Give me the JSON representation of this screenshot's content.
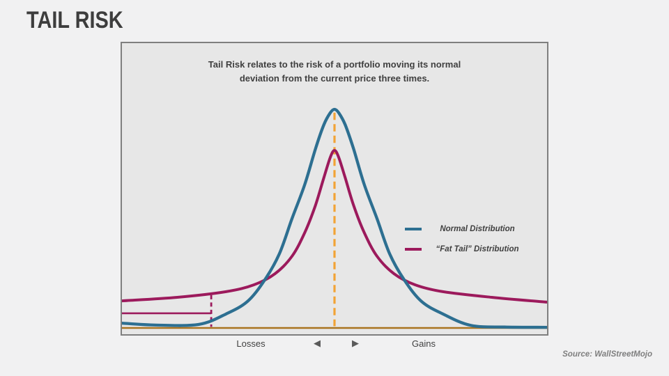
{
  "page": {
    "title": "TAIL RISK",
    "source": "Source: WallStreetMojo",
    "background": "#f1f1f2",
    "text_color": "#3d3d3d"
  },
  "panel": {
    "description_line1": "Tail Risk relates to the risk of a portfolio moving its normal",
    "description_line2": "deviation from the current price three times.",
    "background": "#e7e7e7",
    "border_color": "#7f7f7f"
  },
  "axis": {
    "losses_label": "Losses",
    "gains_label": "Gains",
    "left_arrow_icon": "◀",
    "right_arrow_icon": "▶"
  },
  "chart_data": {
    "type": "line",
    "title": "",
    "xlabel": "",
    "ylabel": "",
    "x_range": [
      -1,
      1
    ],
    "y_range": [
      0,
      1
    ],
    "grid": false,
    "legend_position": "middle-right",
    "x_axis_note": "no numeric ticks; qualitative axis from Losses (left) to Gains (right), center = current price",
    "series": [
      {
        "name": "Normal Distribution",
        "color": "#2d6f91",
        "points": [
          [
            -1.0,
            0.022
          ],
          [
            -0.84,
            0.013
          ],
          [
            -0.64,
            0.016
          ],
          [
            -0.51,
            0.064
          ],
          [
            -0.41,
            0.121
          ],
          [
            -0.33,
            0.217
          ],
          [
            -0.26,
            0.338
          ],
          [
            -0.2,
            0.5
          ],
          [
            -0.14,
            0.656
          ],
          [
            -0.09,
            0.818
          ],
          [
            -0.05,
            0.93
          ],
          [
            -0.02,
            0.984
          ],
          [
            0.0,
            1.0
          ],
          [
            0.02,
            0.984
          ],
          [
            0.05,
            0.93
          ],
          [
            0.09,
            0.818
          ],
          [
            0.14,
            0.656
          ],
          [
            0.2,
            0.5
          ],
          [
            0.26,
            0.338
          ],
          [
            0.33,
            0.217
          ],
          [
            0.41,
            0.121
          ],
          [
            0.51,
            0.064
          ],
          [
            0.64,
            0.012
          ],
          [
            0.8,
            0.004
          ],
          [
            1.0,
            0.003
          ]
        ]
      },
      {
        "name": "“Fat Tail” Distribution",
        "color": "#9c1a5c",
        "points": [
          [
            -1.0,
            0.124
          ],
          [
            -0.74,
            0.14
          ],
          [
            -0.51,
            0.166
          ],
          [
            -0.38,
            0.197
          ],
          [
            -0.28,
            0.248
          ],
          [
            -0.2,
            0.328
          ],
          [
            -0.14,
            0.436
          ],
          [
            -0.09,
            0.56
          ],
          [
            -0.05,
            0.688
          ],
          [
            -0.02,
            0.78
          ],
          [
            0.0,
            0.812
          ],
          [
            0.02,
            0.78
          ],
          [
            0.05,
            0.688
          ],
          [
            0.09,
            0.56
          ],
          [
            0.14,
            0.436
          ],
          [
            0.2,
            0.328
          ],
          [
            0.28,
            0.248
          ],
          [
            0.38,
            0.197
          ],
          [
            0.51,
            0.166
          ],
          [
            0.74,
            0.14
          ],
          [
            1.0,
            0.118
          ]
        ]
      }
    ],
    "annotations": {
      "center_line": {
        "x": 0,
        "top": 0.985,
        "style": "dashed",
        "color": "#f2a335"
      },
      "baseline": {
        "y": 0,
        "color": "#a9731f"
      },
      "tail_marker": {
        "x": -0.58,
        "level": 0.067,
        "curve_top": 0.15,
        "style": "solid horizontal + dashed vertical",
        "color": "#9c1a5c"
      }
    }
  }
}
